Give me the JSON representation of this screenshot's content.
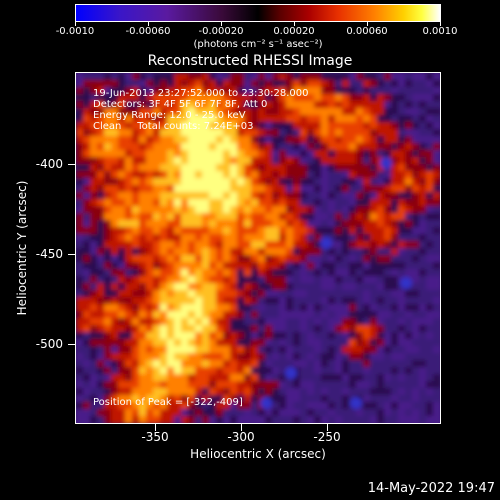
{
  "colorbar": {
    "tick_labels": [
      "-0.0010",
      "-0.00060",
      "-0.00020",
      "0.00020",
      "0.00060",
      "0.0010"
    ],
    "units_label": "(photons cm⁻² s⁻¹ asec⁻²)"
  },
  "title": "Reconstructed RHESSI Image",
  "annotations": {
    "time_range": "19-Jun-2013 23:27:52.000 to 23:30:28.000",
    "detectors": "Detectors: 3F 4F 5F 6F 7F 8F, Att 0",
    "energy_range": "Energy Range: 12.0 - 25.0 keV",
    "clean": "Clean     Total counts: 7.24E+03",
    "peak": "Position of Peak = [-322,-409]"
  },
  "axes": {
    "x_title": "Heliocentric X (arcsec)",
    "y_title": "Heliocentric Y (arcsec)",
    "x_ticks": [
      "-350",
      "-300",
      "-250"
    ],
    "y_ticks": [
      "-400",
      "-450",
      "-500"
    ]
  },
  "date_stamp": "14-May-2022 19:47"
}
